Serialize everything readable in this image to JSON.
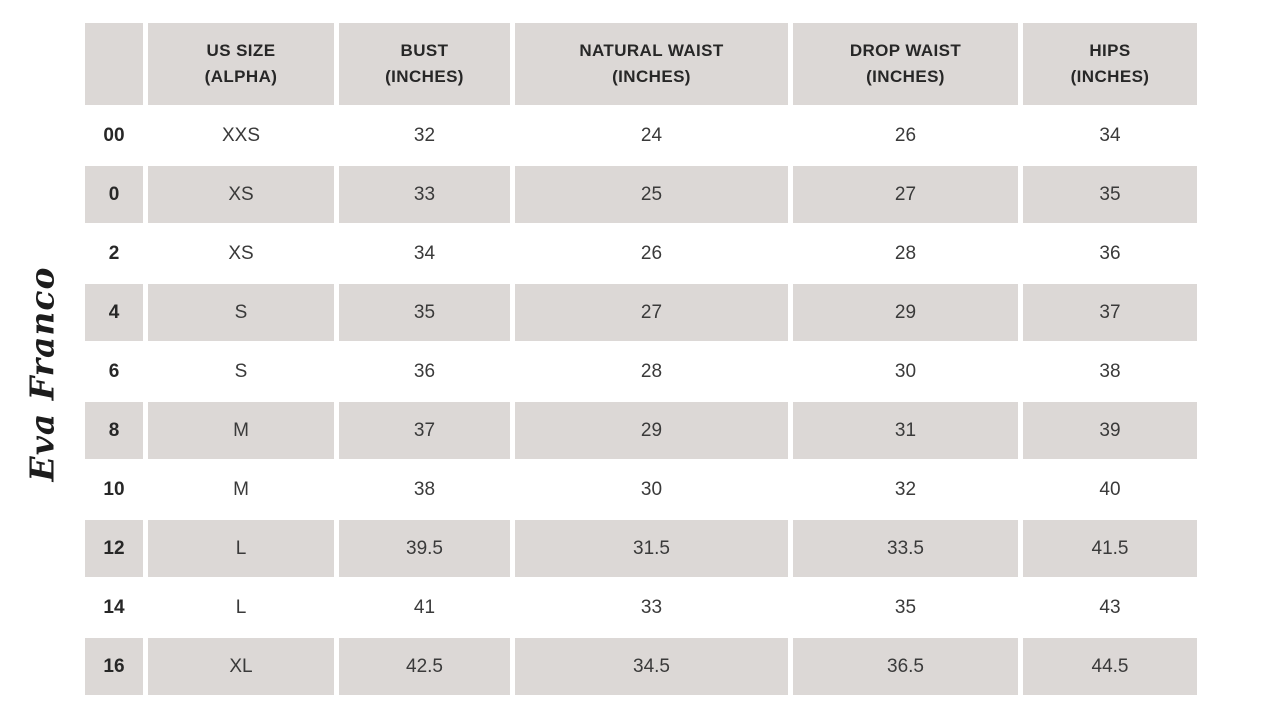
{
  "colors": {
    "background": "#ffffff",
    "stripe": "#dcd8d6",
    "header_text": "#272727",
    "cell_text": "#3a3a3a",
    "logo_color": "#1c1c1c"
  },
  "brand": {
    "logo_text": "Eva Franco"
  },
  "chart_data": {
    "type": "table",
    "columns": [
      {
        "key": "us_size",
        "line1": "",
        "line2": ""
      },
      {
        "key": "alpha_size",
        "line1": "US SIZE",
        "line2": "(ALPHA)"
      },
      {
        "key": "bust",
        "line1": "BUST",
        "line2": "(INCHES)"
      },
      {
        "key": "natural_waist",
        "line1": "NATURAL WAIST",
        "line2": "(INCHES)"
      },
      {
        "key": "drop_waist",
        "line1": "DROP WAIST",
        "line2": "(INCHES)"
      },
      {
        "key": "hips",
        "line1": "HIPS",
        "line2": "(INCHES)"
      }
    ],
    "rows": [
      {
        "us_size": "00",
        "alpha_size": "XXS",
        "bust": "32",
        "natural_waist": "24",
        "drop_waist": "26",
        "hips": "34"
      },
      {
        "us_size": "0",
        "alpha_size": "XS",
        "bust": "33",
        "natural_waist": "25",
        "drop_waist": "27",
        "hips": "35"
      },
      {
        "us_size": "2",
        "alpha_size": "XS",
        "bust": "34",
        "natural_waist": "26",
        "drop_waist": "28",
        "hips": "36"
      },
      {
        "us_size": "4",
        "alpha_size": "S",
        "bust": "35",
        "natural_waist": "27",
        "drop_waist": "29",
        "hips": "37"
      },
      {
        "us_size": "6",
        "alpha_size": "S",
        "bust": "36",
        "natural_waist": "28",
        "drop_waist": "30",
        "hips": "38"
      },
      {
        "us_size": "8",
        "alpha_size": "M",
        "bust": "37",
        "natural_waist": "29",
        "drop_waist": "31",
        "hips": "39"
      },
      {
        "us_size": "10",
        "alpha_size": "M",
        "bust": "38",
        "natural_waist": "30",
        "drop_waist": "32",
        "hips": "40"
      },
      {
        "us_size": "12",
        "alpha_size": "L",
        "bust": "39.5",
        "natural_waist": "31.5",
        "drop_waist": "33.5",
        "hips": "41.5"
      },
      {
        "us_size": "14",
        "alpha_size": "L",
        "bust": "41",
        "natural_waist": "33",
        "drop_waist": "35",
        "hips": "43"
      },
      {
        "us_size": "16",
        "alpha_size": "XL",
        "bust": "42.5",
        "natural_waist": "34.5",
        "drop_waist": "36.5",
        "hips": "44.5"
      }
    ]
  }
}
